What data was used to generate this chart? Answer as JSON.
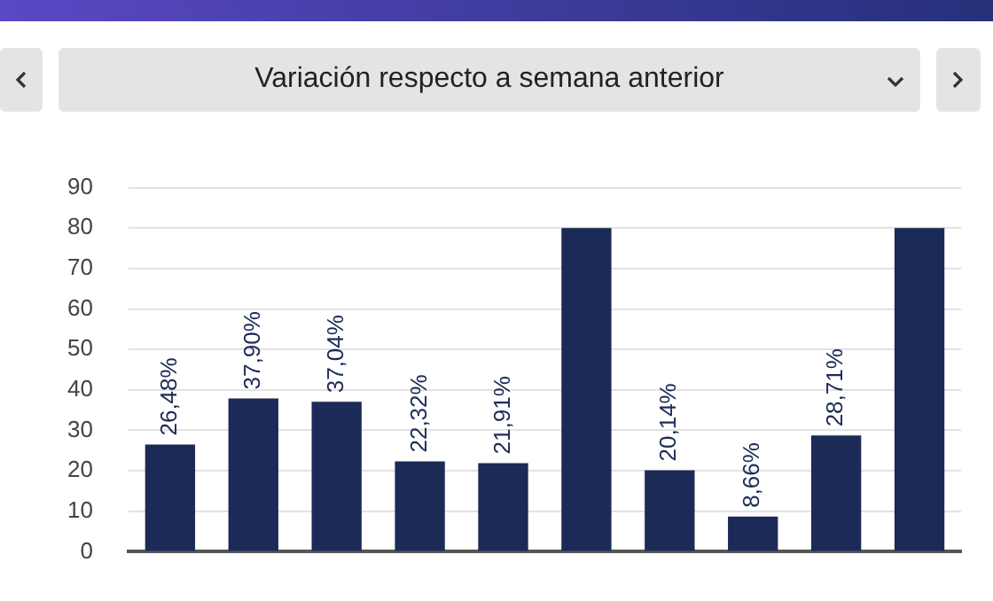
{
  "chart_data": {
    "type": "bar",
    "title": "Variación respecto a semana anterior",
    "categories": [
      null,
      null,
      null,
      null,
      null,
      null,
      null,
      null,
      null,
      null
    ],
    "values": [
      26.48,
      37.9,
      37.04,
      22.32,
      21.91,
      80,
      20.14,
      8.66,
      28.71,
      80
    ],
    "value_labels": [
      "26,48%",
      "37,90%",
      "37,04%",
      "22,32%",
      "21,91%",
      null,
      "20,14%",
      "8,66%",
      "28,71%",
      null
    ],
    "color": "#1c2a57",
    "ylim": [
      0,
      90
    ],
    "yticks": [
      0,
      10,
      20,
      30,
      40,
      50,
      60,
      70,
      80,
      90
    ],
    "grid": "y"
  }
}
